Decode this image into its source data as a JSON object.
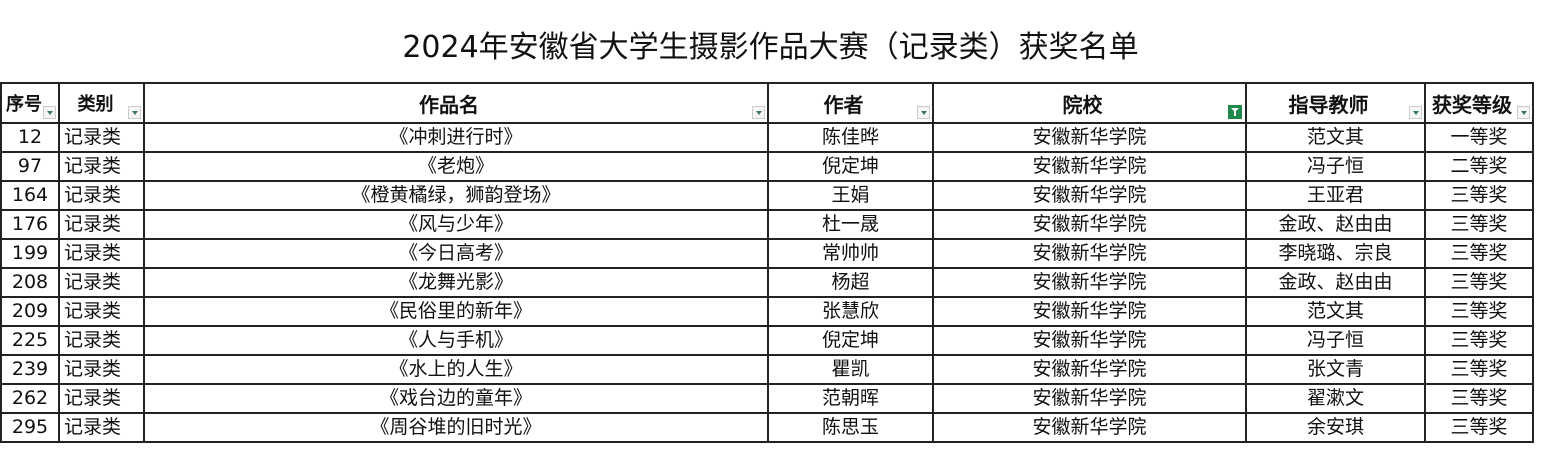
{
  "title": "2024年安徽省大学生摄影作品大赛（记录类）获奖名单",
  "headers": [
    "序号",
    "类别",
    "作品名",
    "作者",
    "院校",
    "指导教师",
    "获奖等级"
  ],
  "filter_column": "院校",
  "rows": [
    [
      "12",
      "记录类",
      "《冲刺进行时》",
      "陈佳晔",
      "安徽新华学院",
      "范文其",
      "一等奖"
    ],
    [
      "97",
      "记录类",
      "《老炮》",
      "倪定坤",
      "安徽新华学院",
      "冯子恒",
      "二等奖"
    ],
    [
      "164",
      "记录类",
      "《橙黄橘绿，狮韵登场》",
      "王娟",
      "安徽新华学院",
      "王亚君",
      "三等奖"
    ],
    [
      "176",
      "记录类",
      "《风与少年》",
      "杜一晟",
      "安徽新华学院",
      "金政、赵由由",
      "三等奖"
    ],
    [
      "199",
      "记录类",
      "《今日高考》",
      "常帅帅",
      "安徽新华学院",
      "李晓璐、宗良",
      "三等奖"
    ],
    [
      "208",
      "记录类",
      "《龙舞光影》",
      "杨超",
      "安徽新华学院",
      "金政、赵由由",
      "三等奖"
    ],
    [
      "209",
      "记录类",
      "《民俗里的新年》",
      "张慧欣",
      "安徽新华学院",
      "范文其",
      "三等奖"
    ],
    [
      "225",
      "记录类",
      "《人与手机》",
      "倪定坤",
      "安徽新华学院",
      "冯子恒",
      "三等奖"
    ],
    [
      "239",
      "记录类",
      "《水上的人生》",
      "瞿凯",
      "安徽新华学院",
      "张文青",
      "三等奖"
    ],
    [
      "262",
      "记录类",
      "《戏台边的童年》",
      "范朝晖",
      "安徽新华学院",
      "翟漱文",
      "三等奖"
    ],
    [
      "295",
      "记录类",
      "《周谷堆的旧时光》",
      "陈思玉",
      "安徽新华学院",
      "余安琪",
      "三等奖"
    ]
  ]
}
